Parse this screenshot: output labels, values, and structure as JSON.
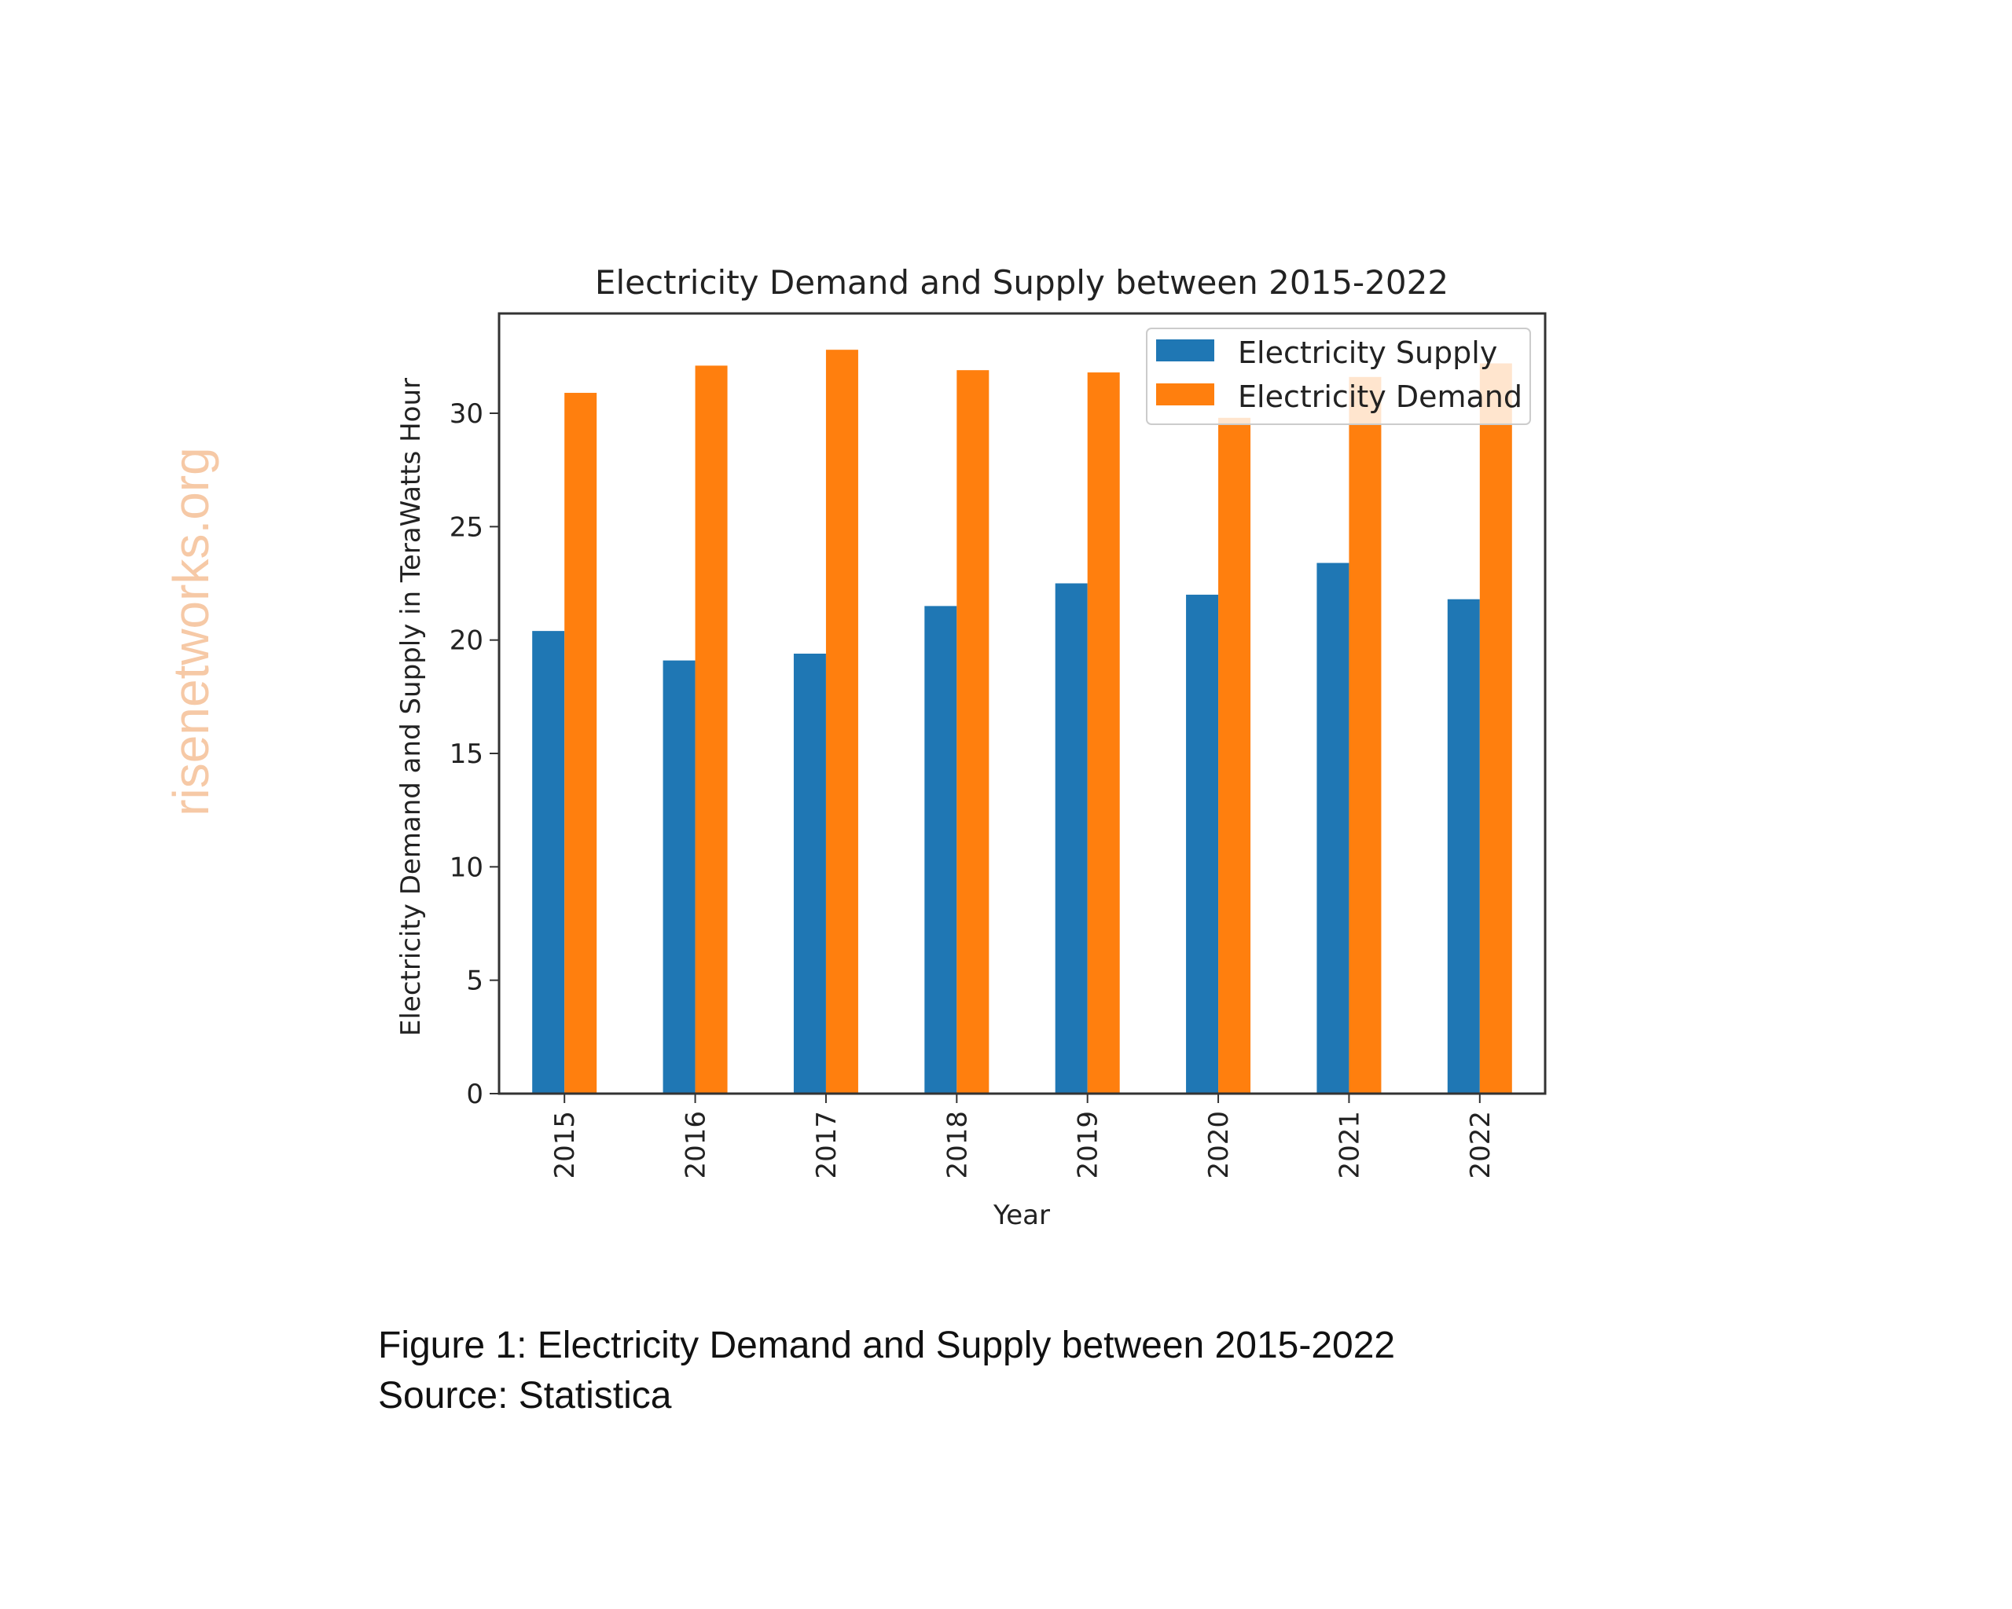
{
  "watermark": "risenetworks.org",
  "caption": {
    "figure": "Figure 1: Electricity Demand and Supply between 2015-2022",
    "source": "Source: Statistica"
  },
  "chart_data": {
    "type": "bar",
    "title": "Electricity Demand and Supply between 2015-2022",
    "xlabel": "Year",
    "ylabel": "Electricity Demand and Supply in TeraWatts Hour",
    "categories": [
      "2015",
      "2016",
      "2017",
      "2018",
      "2019",
      "2020",
      "2021",
      "2022"
    ],
    "series": [
      {
        "name": "Electricity Supply",
        "color": "#1f77b4",
        "values": [
          20.4,
          19.1,
          19.4,
          21.5,
          22.5,
          22.0,
          23.4,
          21.8
        ]
      },
      {
        "name": "Electricity Demand",
        "color": "#ff7f0e",
        "values": [
          30.9,
          32.1,
          32.8,
          31.9,
          31.8,
          29.8,
          31.6,
          32.2
        ]
      }
    ],
    "ylim": [
      0,
      34.4
    ],
    "yticks": [
      0,
      5,
      10,
      15,
      20,
      25,
      30
    ],
    "grid": false,
    "legend": "top-right"
  }
}
